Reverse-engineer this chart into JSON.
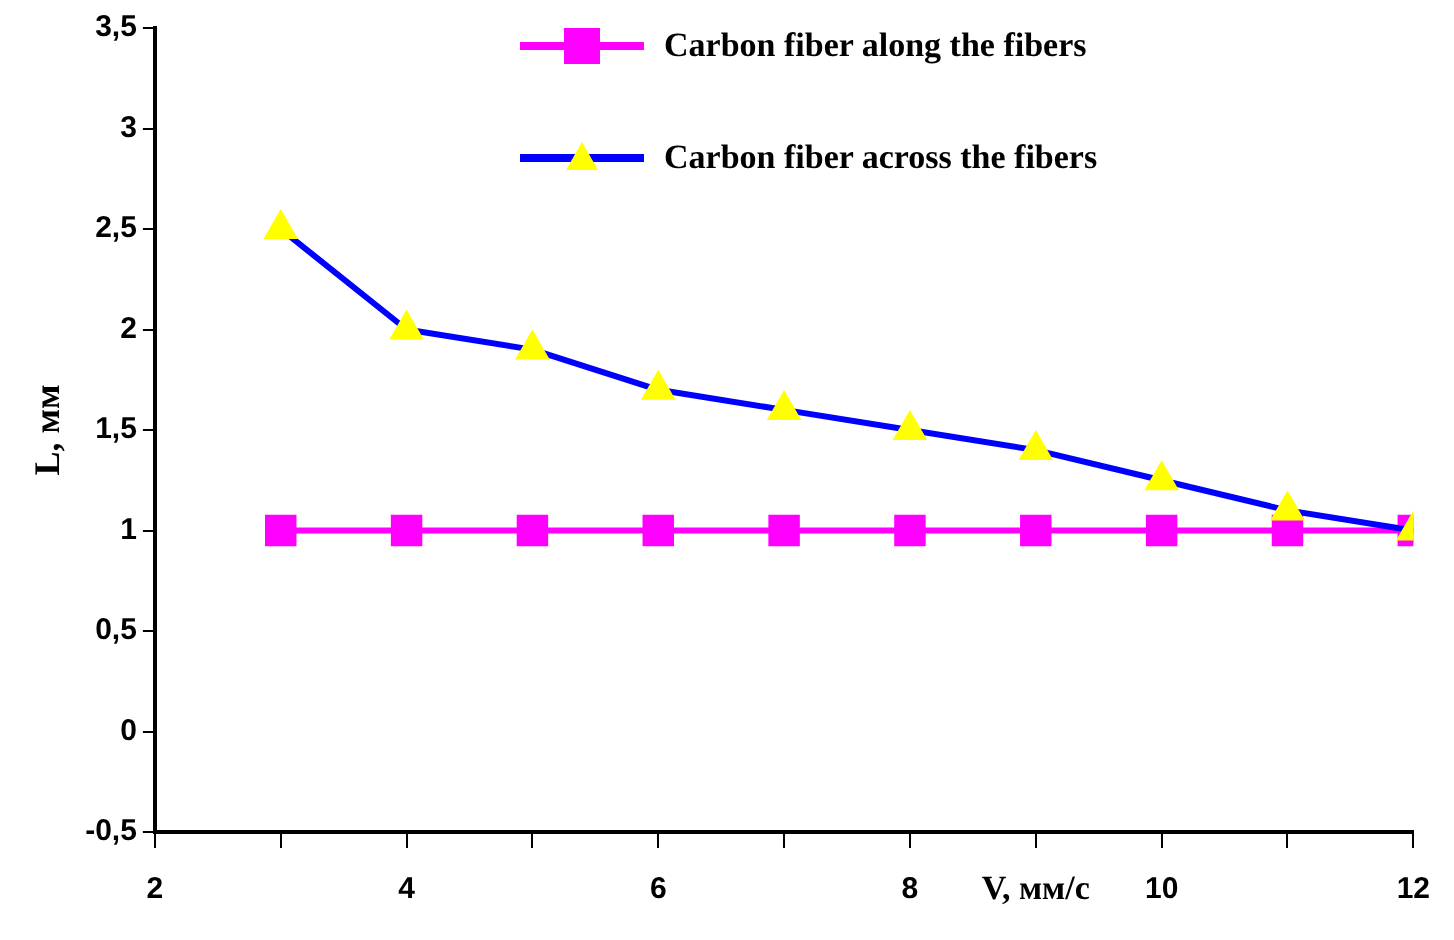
{
  "chart_data": {
    "type": "line",
    "xlabel": "V, мм/с",
    "ylabel": "L, мм",
    "x": [
      3,
      4,
      5,
      6,
      7,
      8,
      9,
      10,
      11,
      12
    ],
    "series": [
      {
        "name": "Carbon fiber along the fibers",
        "color": "#ff00ff",
        "marker": "square",
        "values": [
          1,
          1,
          1,
          1,
          1,
          1,
          1,
          1,
          1,
          1
        ]
      },
      {
        "name": "Carbon fiber across the fibers",
        "color": "#0000ff",
        "marker": "triangle",
        "colors": [
          "#ffff00",
          "#ffff00",
          "#ffff00",
          "#ffff00",
          "#ffff00",
          "#ffff00",
          "#ffff00",
          "#ffff00",
          "#ffff00",
          "#ffff00"
        ],
        "values": [
          2.5,
          2.0,
          1.9,
          1.7,
          1.6,
          1.5,
          1.4,
          1.25,
          1.1,
          1.0
        ]
      }
    ],
    "xlim": [
      2,
      12
    ],
    "xticks": [
      2,
      {
        "value": 3,
        "label": null
      },
      4,
      {
        "value": 5,
        "label": null
      },
      6,
      {
        "value": 7,
        "label": null
      },
      8,
      {
        "value": 9,
        "label": null
      },
      10,
      {
        "value": 11,
        "label": null
      },
      12
    ],
    "ylim": [
      -0.5,
      3.5
    ],
    "yticks": [
      {
        "value": -0.5,
        "label": "-0,5"
      },
      0,
      {
        "value": 0.5,
        "label": "0,5"
      },
      1,
      {
        "value": 1.5,
        "label": "1,5"
      },
      2,
      {
        "value": 2.5,
        "label": "2,5"
      },
      3,
      {
        "value": 3.5,
        "label": "3,5"
      }
    ],
    "grid": false,
    "legend": "top right",
    "line_style": "solid"
  }
}
